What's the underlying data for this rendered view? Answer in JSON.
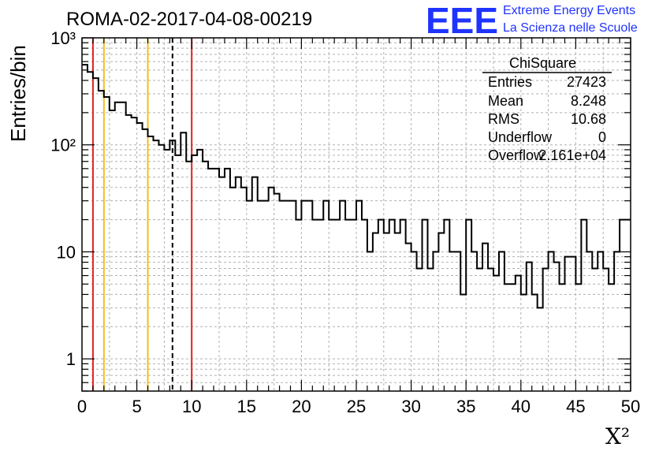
{
  "header": {
    "title": "ROMA-02-2017-04-08-00219",
    "logo_text": "EEE",
    "tagline_1": "Extreme Energy Events",
    "tagline_2": "La Scienza nelle Scuole"
  },
  "colors": {
    "histogram": "#000000",
    "red_lines": "#e02020",
    "orange_lines": "#f0c020",
    "dashed_line": "#000000",
    "logo": "#1f33ff"
  },
  "stats_box": {
    "name": "ChiSquare",
    "rows": [
      {
        "label": "Entries",
        "value": "27423"
      },
      {
        "label": "Mean",
        "value": "8.248"
      },
      {
        "label": "RMS",
        "value": "10.68"
      },
      {
        "label": "Underflow",
        "value": "0"
      },
      {
        "label": "Overflow",
        "value": "2.161e+04"
      }
    ]
  },
  "chart_data": {
    "type": "histogram",
    "title": "ROMA-02-2017-04-08-00219",
    "xlabel": "X²",
    "ylabel": "Entries/bin",
    "x_range": [
      0,
      50
    ],
    "y_range": [
      0.5,
      1000
    ],
    "y_scale": "log",
    "grid": true,
    "bin_width": 0.5,
    "x_ticks": [
      0,
      5,
      10,
      15,
      20,
      25,
      30,
      35,
      40,
      45,
      50
    ],
    "x_tick_labels": [
      "0",
      "5",
      "10",
      "15",
      "20",
      "25",
      "30",
      "35",
      "40",
      "45",
      "50"
    ],
    "y_ticks": [
      1,
      10,
      100,
      1000
    ],
    "y_tick_labels": [
      "1",
      "10",
      "10²",
      "10³"
    ],
    "counts": [
      560,
      480,
      420,
      320,
      280,
      210,
      250,
      250,
      190,
      180,
      160,
      140,
      120,
      110,
      100,
      90,
      110,
      80,
      130,
      70,
      80,
      90,
      70,
      60,
      60,
      50,
      60,
      40,
      50,
      40,
      30,
      50,
      30,
      30,
      40,
      35,
      30,
      30,
      30,
      20,
      30,
      30,
      20,
      20,
      30,
      20,
      20,
      30,
      20,
      20,
      30,
      20,
      10,
      15,
      20,
      15,
      20,
      15,
      20,
      12,
      10,
      7,
      20,
      7,
      10,
      15,
      20,
      10,
      10,
      4,
      20,
      10,
      7,
      12,
      7,
      6,
      10,
      5,
      5,
      6,
      4,
      8,
      4,
      3,
      7,
      10,
      8,
      5,
      9,
      9,
      5,
      20,
      10,
      7,
      10,
      7,
      5,
      10,
      20,
      20
    ],
    "vertical_lines": [
      {
        "x": 1.0,
        "color": "red",
        "style": "solid"
      },
      {
        "x": 2.0,
        "color": "orange",
        "style": "solid"
      },
      {
        "x": 6.0,
        "color": "orange",
        "style": "solid"
      },
      {
        "x": 8.248,
        "color": "black",
        "style": "dashed"
      },
      {
        "x": 10.0,
        "color": "red",
        "style": "solid"
      }
    ]
  }
}
